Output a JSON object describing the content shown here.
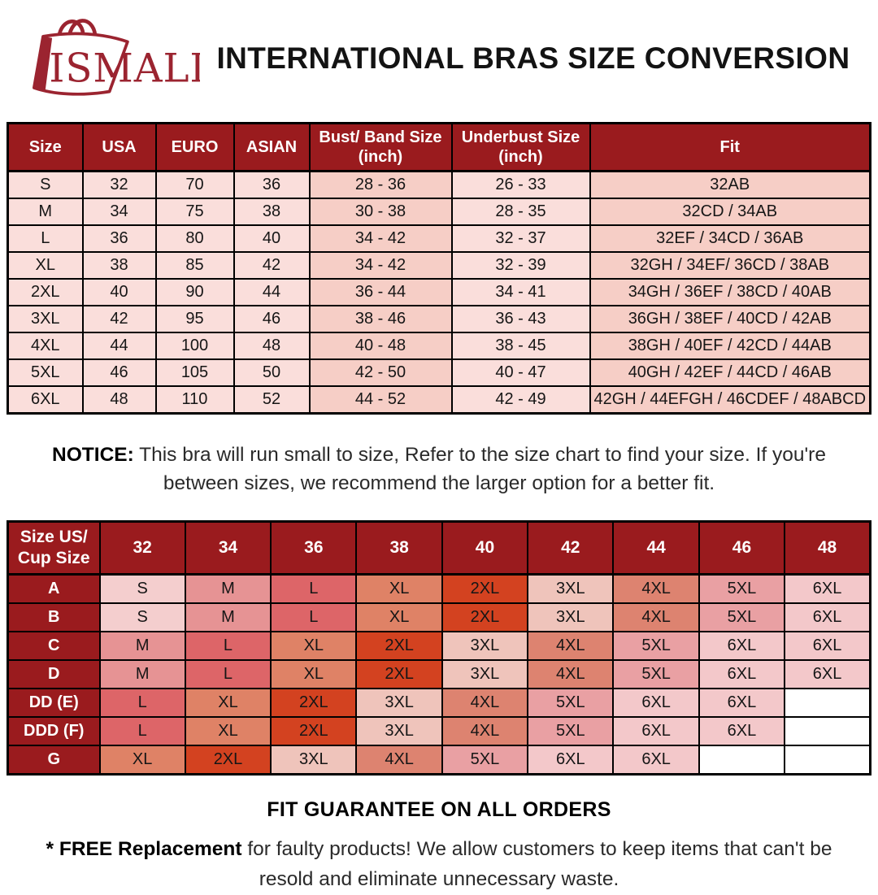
{
  "brand": {
    "name": "ISMALI"
  },
  "header": {
    "title": "INTERNATIONAL BRAS SIZE CONVERSION"
  },
  "notice": {
    "label": "NOTICE:",
    "text": "This bra will run small to size, Refer to the size chart to find your size. If you're between sizes, we recommend the larger option for a better fit."
  },
  "footer": {
    "guarantee": "FIT GUARANTEE ON ALL ORDERS",
    "note_bold": "* FREE Replacement",
    "note_text": "for faulty products! We allow customers to keep items that can't be resold and eliminate unnecessary waste."
  },
  "colors": {
    "header_red": "#9A1B1E",
    "brand_red": "#9B2430",
    "table_light_pink": "#FADEDB",
    "table_dark_pink": "#F6CEC6"
  },
  "chart_data": [
    {
      "type": "table",
      "title": "International Bras Size Conversion",
      "columns": [
        "Size",
        "USA",
        "EURO",
        "ASIAN",
        "Bust/ Band Size (inch)",
        "Underbust Size (inch)",
        "Fit"
      ],
      "rows": [
        [
          "S",
          "32",
          "70",
          "36",
          "28 - 36",
          "26 - 33",
          "32AB"
        ],
        [
          "M",
          "34",
          "75",
          "38",
          "30 - 38",
          "28 - 35",
          "32CD / 34AB"
        ],
        [
          "L",
          "36",
          "80",
          "40",
          "34 - 42",
          "32 - 37",
          "32EF / 34CD / 36AB"
        ],
        [
          "XL",
          "38",
          "85",
          "42",
          "34 - 42",
          "32 - 39",
          "32GH / 34EF/ 36CD / 38AB"
        ],
        [
          "2XL",
          "40",
          "90",
          "44",
          "36 - 44",
          "34 - 41",
          "34GH / 36EF / 38CD / 40AB"
        ],
        [
          "3XL",
          "42",
          "95",
          "46",
          "38 - 46",
          "36 - 43",
          "36GH / 38EF / 40CD / 42AB"
        ],
        [
          "4XL",
          "44",
          "100",
          "48",
          "40 - 48",
          "38 - 45",
          "38GH / 40EF / 42CD / 44AB"
        ],
        [
          "5XL",
          "46",
          "105",
          "50",
          "42 - 50",
          "40 - 47",
          "40GH / 42EF / 44CD / 46AB"
        ],
        [
          "6XL",
          "48",
          "110",
          "52",
          "44 - 52",
          "42 - 49",
          "42GH / 44EFGH / 46CDEF / 48ABCD"
        ]
      ],
      "shaded_columns": [
        4,
        6
      ]
    },
    {
      "type": "table",
      "title": "Size US / Cup Size matrix",
      "columns": [
        "Size US/ Cup Size",
        "32",
        "34",
        "36",
        "38",
        "40",
        "42",
        "44",
        "46",
        "48"
      ],
      "rows": [
        [
          "A",
          "S",
          "M",
          "L",
          "XL",
          "2XL",
          "3XL",
          "4XL",
          "5XL",
          "6XL"
        ],
        [
          "B",
          "S",
          "M",
          "L",
          "XL",
          "2XL",
          "3XL",
          "4XL",
          "5XL",
          "6XL"
        ],
        [
          "C",
          "M",
          "L",
          "XL",
          "2XL",
          "3XL",
          "4XL",
          "5XL",
          "6XL",
          "6XL"
        ],
        [
          "D",
          "M",
          "L",
          "XL",
          "2XL",
          "3XL",
          "4XL",
          "5XL",
          "6XL",
          "6XL"
        ],
        [
          "DD (E)",
          "L",
          "XL",
          "2XL",
          "3XL",
          "4XL",
          "5XL",
          "6XL",
          "6XL",
          ""
        ],
        [
          "DDD (F)",
          "L",
          "XL",
          "2XL",
          "3XL",
          "4XL",
          "5XL",
          "6XL",
          "6XL",
          ""
        ],
        [
          "G",
          "XL",
          "2XL",
          "3XL",
          "4XL",
          "5XL",
          "6XL",
          "6XL",
          "",
          ""
        ]
      ],
      "cell_colors": {
        "S": "#F4CECE",
        "M": "#E69394",
        "L": "#DD6568",
        "XL": "#DF8266",
        "2XL": "#D34220",
        "3XL": "#EFC4BB",
        "4XL": "#DD8370",
        "5XL": "#E9A0A3",
        "6XL": "#F3C8CA",
        "": "#FFFFFF"
      }
    }
  ]
}
